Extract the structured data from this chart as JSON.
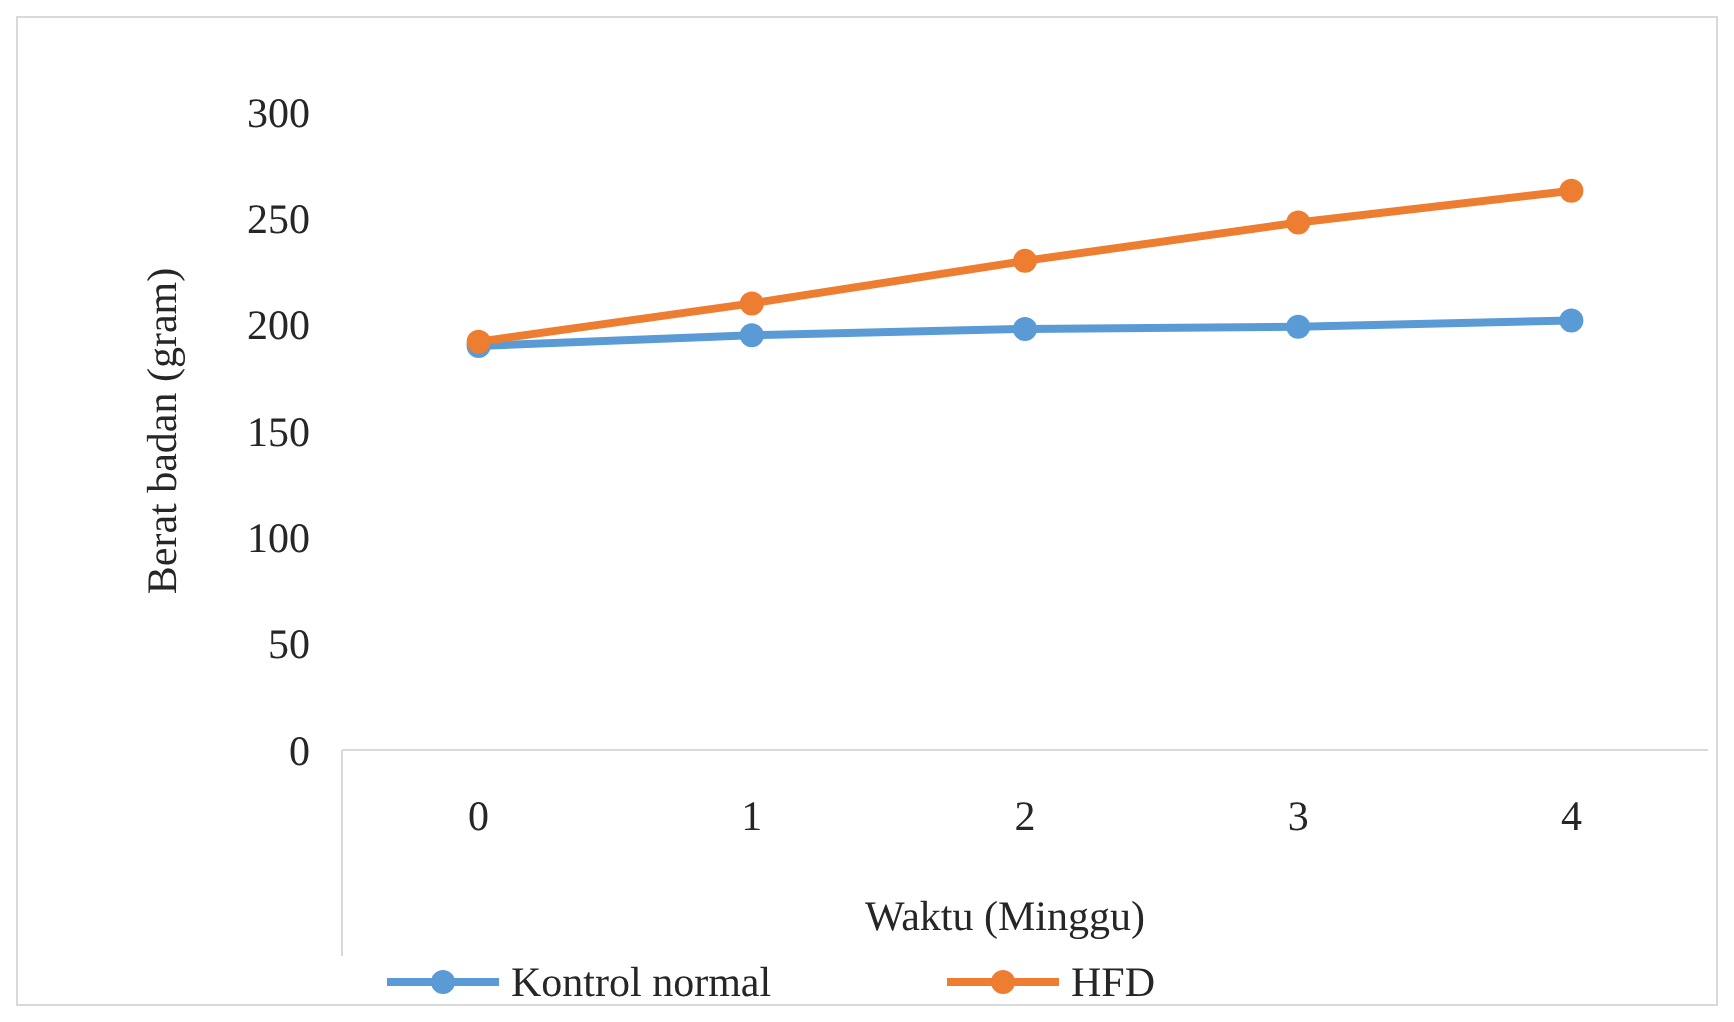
{
  "chart_data": {
    "type": "line",
    "xlabel": "Waktu (Minggu)",
    "ylabel": "Berat badan (gram)",
    "categories": [
      "0",
      "1",
      "2",
      "3",
      "4"
    ],
    "series": [
      {
        "name": "Kontrol normal",
        "color": "#5b9bd5",
        "values": [
          190,
          195,
          198,
          199,
          202
        ]
      },
      {
        "name": "HFD",
        "color": "#ed7d31",
        "values": [
          192,
          210,
          230,
          248,
          263
        ]
      }
    ],
    "ylim": [
      0,
      300
    ],
    "yticks": [
      0,
      50,
      100,
      150,
      200,
      250,
      300
    ],
    "grid": false,
    "legend": "bottom",
    "marker": "circle",
    "line_style": "solid"
  }
}
